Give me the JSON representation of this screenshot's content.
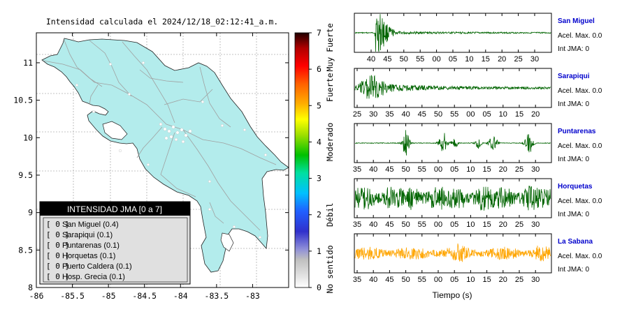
{
  "title": "Intensidad calculada el 2024/12/18_02:12:41_a.m.",
  "map": {
    "chart_data": {
      "type": "map",
      "xlim": [
        -86,
        -82.5
      ],
      "ylim": [
        8,
        11.4
      ],
      "xticks": [
        "-86",
        "-85.5",
        "-85",
        "-84.5",
        "-84",
        "-83.5",
        "-83"
      ],
      "yticks": [
        "8",
        "8.5",
        "9",
        "9.5",
        "10",
        "10.5",
        "11"
      ],
      "grid": true
    },
    "colors": {
      "land": "#b3ecec",
      "water": "#ffffff",
      "grid": "#b0b0b0",
      "roads": "#a0a0a0"
    }
  },
  "colorbar": {
    "chart_data": {
      "type": "colorbar",
      "range": [
        0,
        7
      ],
      "ticks": [
        "0",
        "1",
        "2",
        "3",
        "4",
        "5",
        "6",
        "7"
      ],
      "labels": [
        "No sentido",
        "Débil",
        "Moderado",
        "Fuerte",
        "Muy Fuerte"
      ]
    }
  },
  "legend": {
    "header": "INTENSIDAD JMA [0 a 7]",
    "entries": [
      {
        "code": "[ 0 ]",
        "name": "San Miguel (0.4)"
      },
      {
        "code": "[ 0 ]",
        "name": "Sarapiqui (0.1)"
      },
      {
        "code": "[ 0 ]",
        "name": "Puntarenas (0.1)"
      },
      {
        "code": "[ 0 ]",
        "name": "Horquetas (0.1)"
      },
      {
        "code": "[ 0 ]",
        "name": "Puerto Caldera (0.1)"
      },
      {
        "code": "[ 0 ]",
        "name": "Hosp. Grecia (0.1)"
      }
    ]
  },
  "seismograms": {
    "xlabel": "Tiempo (s)",
    "accel_label": "Acel. Max. 0.0",
    "jma_label": "Int JMA: 0",
    "station_color": "#0000cc",
    "chart_data": [
      {
        "type": "line",
        "station": "San Miguel",
        "color": "#006400",
        "ticks": [
          "40",
          "45",
          "50",
          "55",
          "00",
          "05",
          "10",
          "15",
          "20",
          "25",
          "30"
        ]
      },
      {
        "type": "line",
        "station": "Sarapiqui",
        "color": "#006400",
        "ticks": [
          "25",
          "30",
          "35",
          "40",
          "45",
          "50",
          "55",
          "00",
          "05",
          "10",
          "15",
          "20"
        ]
      },
      {
        "type": "line",
        "station": "Puntarenas",
        "color": "#006400",
        "ticks": [
          "35",
          "40",
          "45",
          "50",
          "55",
          "00",
          "05",
          "10",
          "15",
          "20",
          "25",
          "30"
        ]
      },
      {
        "type": "line",
        "station": "Horquetas",
        "color": "#006400",
        "ticks": [
          "35",
          "40",
          "45",
          "50",
          "55",
          "00",
          "05",
          "10",
          "15",
          "20",
          "25",
          "30"
        ]
      },
      {
        "type": "line",
        "station": "La Sabana",
        "color": "#ffa500",
        "ticks": [
          "35",
          "40",
          "45",
          "50",
          "55",
          "00",
          "05",
          "10",
          "15",
          "20",
          "25",
          "30"
        ]
      }
    ]
  }
}
